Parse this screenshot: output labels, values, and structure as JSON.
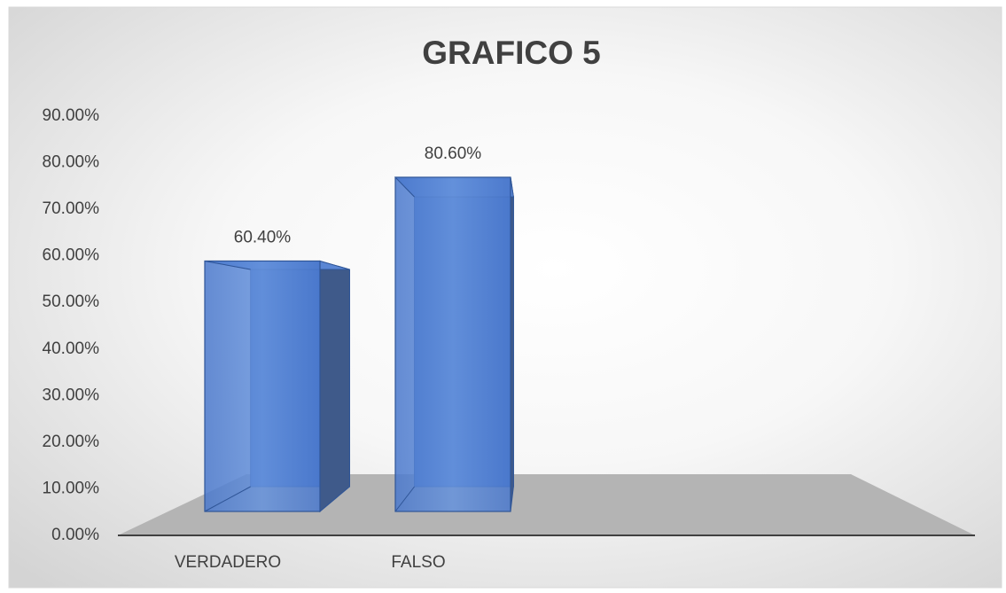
{
  "chart_data": {
    "type": "bar3d",
    "title": "GRAFICO  5",
    "categories": [
      "VERDADERO",
      "FALSO"
    ],
    "values": [
      60.4,
      80.6
    ],
    "value_labels": [
      "60.40%",
      "80.60%"
    ],
    "color": "#4472c4",
    "ylim": [
      0,
      90
    ],
    "yticks": [
      {
        "value": 0,
        "label": "0.00%"
      },
      {
        "value": 10,
        "label": "10.00%"
      },
      {
        "value": 20,
        "label": "20.00%"
      },
      {
        "value": 30,
        "label": "30.00%"
      },
      {
        "value": 40,
        "label": "40.00%"
      },
      {
        "value": 50,
        "label": "50.00%"
      },
      {
        "value": 60,
        "label": "60.00%"
      },
      {
        "value": 70,
        "label": "70.00%"
      },
      {
        "value": 80,
        "label": "80.00%"
      },
      {
        "value": 90,
        "label": "90.00%"
      }
    ],
    "grid": false
  }
}
